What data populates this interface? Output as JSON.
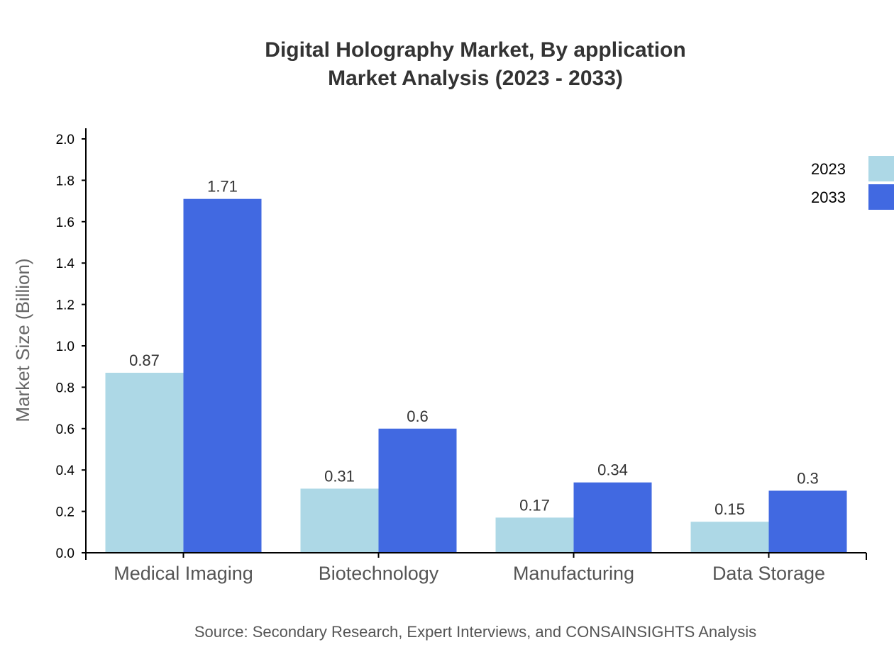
{
  "chart_data": {
    "type": "bar",
    "title_lines": [
      "Digital Holography Market, By application",
      "Market Analysis (2023 - 2033)"
    ],
    "ylabel": "Market Size (Billion)",
    "xlabel": "",
    "categories": [
      "Medical Imaging",
      "Biotechnology",
      "Manufacturing",
      "Data Storage"
    ],
    "series": [
      {
        "name": "2023",
        "color": "#add8e6",
        "values": [
          0.87,
          0.31,
          0.17,
          0.15
        ],
        "labels": [
          "0.87",
          "0.31",
          "0.17",
          "0.15"
        ]
      },
      {
        "name": "2033",
        "color": "#4169e1",
        "values": [
          1.71,
          0.6,
          0.34,
          0.3
        ],
        "labels": [
          "1.71",
          "0.6",
          "0.34",
          "0.3"
        ]
      }
    ],
    "ylim": [
      0,
      2.0
    ],
    "yticks": [
      "0.0",
      "0.2",
      "0.4",
      "0.6",
      "0.8",
      "1.0",
      "1.2",
      "1.4",
      "1.6",
      "1.8",
      "2.0"
    ],
    "grid": false,
    "legend_position": "top-right"
  },
  "source": "Source: Secondary Research, Expert Interviews, and CONSAINSIGHTS Analysis"
}
